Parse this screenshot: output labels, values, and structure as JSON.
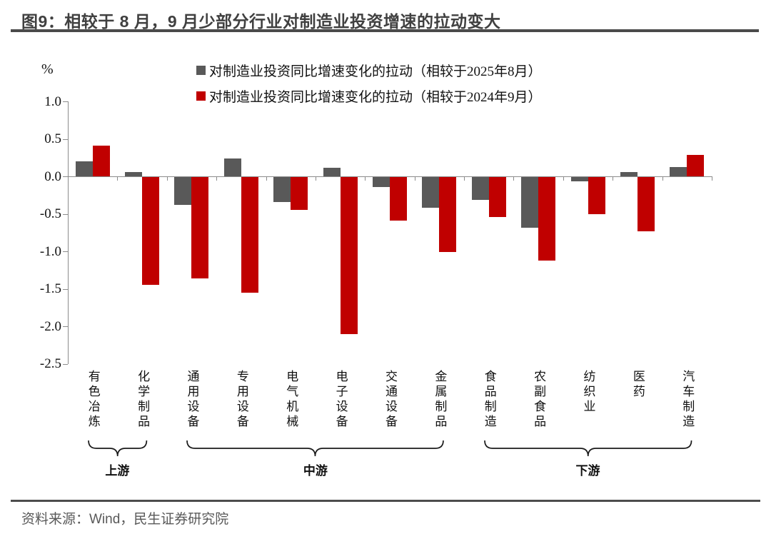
{
  "title": "图9：相较于 8 月，9 月少部分行业对制造业投资增速的拉动变大",
  "source": "资料来源：Wind，民生证券研究院",
  "chart_data": {
    "type": "bar",
    "title": "图9：相较于 8 月，9 月少部分行业对制造业投资增速的拉动变大",
    "ylabel": "%",
    "ylim": [
      -2.5,
      1.0
    ],
    "y_tick_step": 0.5,
    "y_tick_labels": [
      "1.0",
      "0.5",
      "0.0",
      "-0.5",
      "-1.0",
      "-1.5",
      "-2.0",
      "-2.5"
    ],
    "grid": false,
    "legend_position": "top",
    "categories": [
      "有色冶炼",
      "化学制品",
      "通用设备",
      "专用设备",
      "电气机械",
      "电子设备",
      "交通设备",
      "金属制品",
      "食品制造",
      "农副食品",
      "纺织业",
      "医药",
      "汽车制造"
    ],
    "series": [
      {
        "name": "对制造业投资同比增速变化的拉动（相较于2025年8月）",
        "color": "#595959",
        "values": [
          0.2,
          0.06,
          -0.37,
          0.24,
          -0.33,
          0.12,
          -0.13,
          -0.41,
          -0.3,
          -0.67,
          -0.05,
          0.06,
          0.13
        ]
      },
      {
        "name": "对制造业投资同比增速变化的拉动（相较于2024年9月）",
        "color": "#C00000",
        "values": [
          0.41,
          -1.44,
          -1.35,
          -1.54,
          -0.44,
          -2.09,
          -0.58,
          -1.0,
          -0.53,
          -1.11,
          -0.49,
          -0.72,
          0.29
        ]
      }
    ],
    "groups": [
      {
        "label": "上游",
        "from": 0,
        "to": 1
      },
      {
        "label": "中游",
        "from": 2,
        "to": 7
      },
      {
        "label": "下游",
        "from": 8,
        "to": 12
      }
    ]
  }
}
